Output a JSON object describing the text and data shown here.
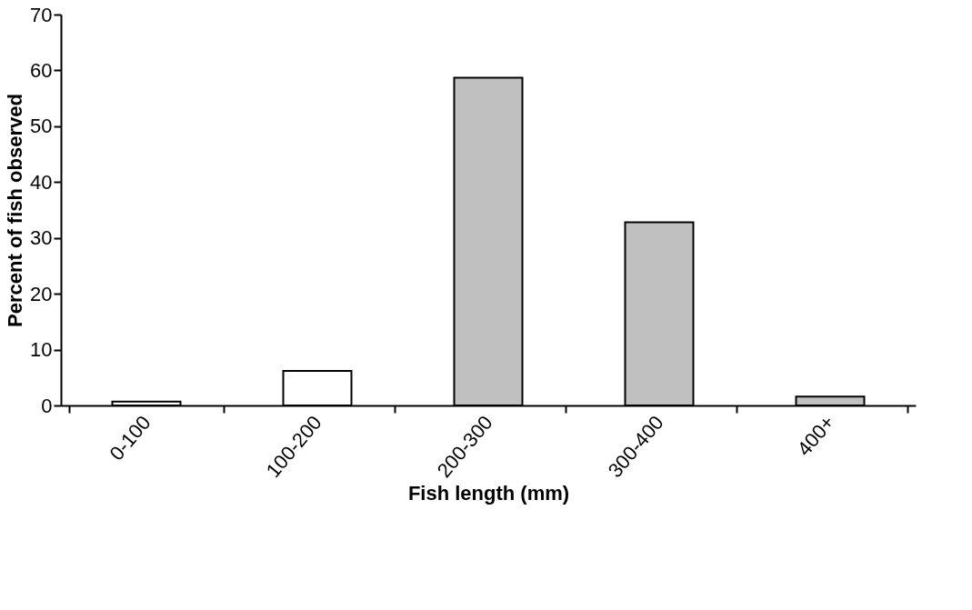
{
  "chart_data": {
    "type": "bar",
    "categories": [
      "0-100",
      "100-200",
      "200-300",
      "300-400",
      "400+"
    ],
    "values": [
      0.7,
      6.2,
      58.7,
      32.8,
      1.6
    ],
    "colors": [
      "#ffffff",
      "#ffffff",
      "#c0c0c0",
      "#c0c0c0",
      "#c0c0c0"
    ],
    "xlabel": "Fish length (mm)",
    "ylabel": "Percent of fish observed",
    "ylim": [
      0,
      70
    ],
    "yticks": [
      0,
      10,
      20,
      30,
      40,
      50,
      60,
      70
    ],
    "grid": false
  }
}
